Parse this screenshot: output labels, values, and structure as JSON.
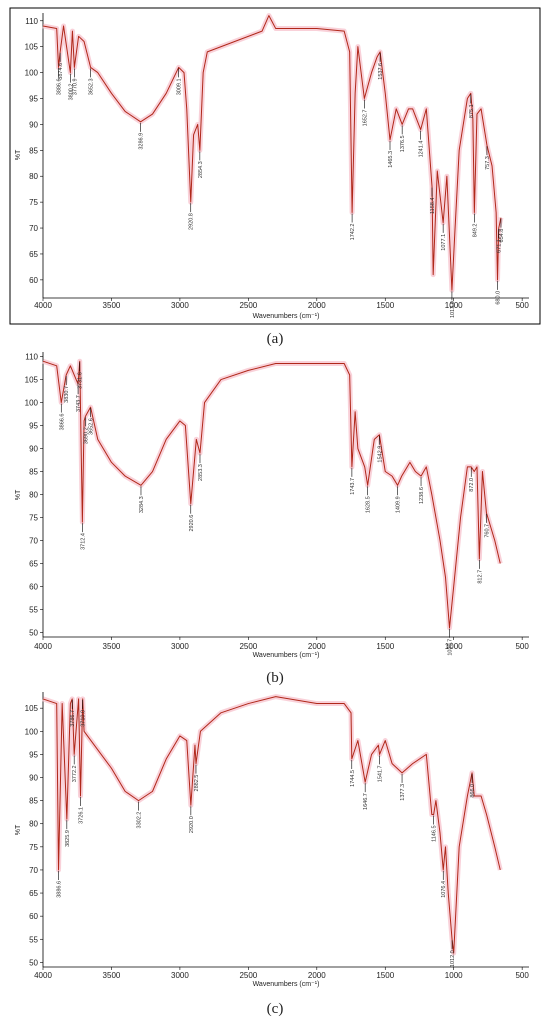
{
  "chart_data": [
    {
      "type": "line",
      "panel_label": "(a)",
      "x_label": "Wavenumbers (cm⁻¹)",
      "y_label": "%T",
      "xlim": [
        4000,
        450
      ],
      "xticks": [
        4000,
        3500,
        3000,
        2500,
        2000,
        1500,
        1000,
        500
      ],
      "ylim": [
        56.5,
        111.5
      ],
      "yticks": [
        60,
        65,
        70,
        75,
        80,
        85,
        90,
        95,
        100,
        105,
        110
      ],
      "frame": true,
      "series": [
        {
          "color": "#b0281a",
          "x": [
            4000,
            3900,
            3886.6,
            3874.6,
            3850,
            3800.2,
            3785,
            3770.9,
            3740,
            3700,
            3652.3,
            3600,
            3500,
            3400,
            3286.9,
            3200,
            3100,
            3009.1,
            2970,
            2950,
            2920.8,
            2900,
            2870,
            2854.3,
            2830,
            2800,
            2600,
            2400,
            2350,
            2300,
            2000,
            1800,
            1760,
            1742.2,
            1720,
            1700,
            1652.7,
            1600,
            1560,
            1537.6,
            1500,
            1465.3,
            1420,
            1376.5,
            1330,
            1300,
            1241.4,
            1200,
            1158.4,
            1150,
            1120,
            1077.1,
            1050,
            1013.0,
            990,
            960,
            900,
            875.1,
            860,
            849.2,
            830,
            800,
            757.3,
            720,
            690,
            680.0,
            671.1,
            654.8
          ],
          "values": [
            109,
            108.5,
            101,
            104,
            109,
            100,
            108,
            101,
            107,
            106,
            101,
            100,
            96,
            92.5,
            90.5,
            92,
            96,
            101,
            100,
            93,
            75,
            88,
            90,
            85,
            100,
            104,
            106,
            108,
            111,
            108.5,
            108.5,
            108,
            104,
            73,
            96,
            105,
            95,
            100,
            103,
            104,
            96,
            87,
            93,
            90,
            93,
            93,
            89,
            93,
            78,
            61,
            81,
            71,
            80,
            58,
            70,
            85,
            95,
            96,
            91,
            73,
            92,
            93,
            86,
            82,
            73,
            60,
            70,
            72
          ]
        }
      ],
      "annotations": [
        {
          "x": 3886.6,
          "label": "3886.6"
        },
        {
          "x": 3874.6,
          "label": "3874.6"
        },
        {
          "x": 3800.2,
          "label": "3800.2"
        },
        {
          "x": 3770.9,
          "label": "3770.9"
        },
        {
          "x": 3652.3,
          "label": "3652.3"
        },
        {
          "x": 3286.9,
          "label": "3286.9"
        },
        {
          "x": 3009.1,
          "label": "3009.1"
        },
        {
          "x": 2920.8,
          "label": "2920.8"
        },
        {
          "x": 2854.3,
          "label": "2854.3"
        },
        {
          "x": 1742.2,
          "label": "1742.2"
        },
        {
          "x": 1652.7,
          "label": "1652.7"
        },
        {
          "x": 1537.6,
          "label": "1537.6"
        },
        {
          "x": 1465.3,
          "label": "1465.3"
        },
        {
          "x": 1376.5,
          "label": "1376.5"
        },
        {
          "x": 1241.4,
          "label": "1241.4"
        },
        {
          "x": 1158.4,
          "label": "1158.4"
        },
        {
          "x": 1077.1,
          "label": "1077.1"
        },
        {
          "x": 1013.0,
          "label": "1013.0"
        },
        {
          "x": 875.1,
          "label": "875.1"
        },
        {
          "x": 849.2,
          "label": "849.2"
        },
        {
          "x": 757.3,
          "label": "757.3"
        },
        {
          "x": 680.0,
          "label": "680.0"
        },
        {
          "x": 671.1,
          "label": "671.1"
        },
        {
          "x": 654.8,
          "label": "654.8"
        }
      ]
    },
    {
      "type": "line",
      "panel_label": "(b)",
      "x_label": "Wavenumbers (cm⁻¹)",
      "y_label": "%T",
      "xlim": [
        4000,
        450
      ],
      "xticks": [
        4000,
        3500,
        3000,
        2500,
        2000,
        1500,
        1000,
        500
      ],
      "ylim": [
        49,
        111
      ],
      "yticks": [
        50,
        55,
        60,
        65,
        70,
        75,
        80,
        85,
        90,
        95,
        100,
        105,
        110
      ],
      "frame": false,
      "series": [
        {
          "color": "#b0281a",
          "x": [
            4000,
            3900,
            3866.6,
            3830.7,
            3800,
            3743.7,
            3731.6,
            3712.4,
            3700,
            3690.2,
            3652.6,
            3600,
            3500,
            3400,
            3284.3,
            3200,
            3100,
            3000,
            2960,
            2920.6,
            2880,
            2853.3,
            2820,
            2700,
            2500,
            2300,
            2000,
            1800,
            1760,
            1743.7,
            1720,
            1700,
            1650,
            1628.5,
            1580,
            1542.9,
            1500,
            1450,
            1409.9,
            1380,
            1320,
            1280,
            1238.6,
            1200,
            1160,
            1100,
            1060,
            1030.7,
            1000,
            950,
            900,
            872.0,
            850,
            830,
            812.7,
            790,
            760.7,
            700,
            660
          ],
          "values": [
            109,
            108,
            100,
            106,
            108,
            104,
            109,
            74,
            96,
            97,
            99,
            92,
            87,
            84,
            82,
            85,
            92,
            96,
            95,
            78,
            92,
            89,
            100,
            105,
            107,
            108.5,
            108.5,
            108.5,
            106,
            86,
            98,
            90,
            86,
            82,
            92,
            93,
            85,
            84,
            82,
            84,
            87,
            85,
            84,
            86,
            80,
            70,
            62,
            51,
            60,
            75,
            86,
            86,
            85,
            86,
            66,
            85,
            76,
            70,
            65
          ]
        }
      ],
      "annotations": [
        {
          "x": 3866.6,
          "label": "3866.6"
        },
        {
          "x": 3830.7,
          "label": "3830.7"
        },
        {
          "x": 3743.7,
          "label": "3743.7"
        },
        {
          "x": 3731.6,
          "label": "3731.6"
        },
        {
          "x": 3712.4,
          "label": "3712.4"
        },
        {
          "x": 3690.2,
          "label": "3690.2"
        },
        {
          "x": 3652.6,
          "label": "3652.6"
        },
        {
          "x": 3284.3,
          "label": "3284.3"
        },
        {
          "x": 2920.6,
          "label": "2920.6"
        },
        {
          "x": 2853.3,
          "label": "2853.3"
        },
        {
          "x": 1743.7,
          "label": "1743.7"
        },
        {
          "x": 1628.5,
          "label": "1628.5"
        },
        {
          "x": 1542.9,
          "label": "1542.9"
        },
        {
          "x": 1409.9,
          "label": "1409.9"
        },
        {
          "x": 1238.6,
          "label": "1238.6"
        },
        {
          "x": 1030.7,
          "label": "1030.7"
        },
        {
          "x": 872.0,
          "label": "872.0"
        },
        {
          "x": 812.7,
          "label": "812.7"
        },
        {
          "x": 760.7,
          "label": "760.7"
        }
      ]
    },
    {
      "type": "line",
      "panel_label": "(c)",
      "x_label": "Wavenumbers (cm⁻¹)",
      "y_label": "%T",
      "xlim": [
        4000,
        450
      ],
      "xticks": [
        4000,
        3500,
        3000,
        2500,
        2000,
        1500,
        1000,
        500
      ],
      "ylim": [
        49,
        108.5
      ],
      "yticks": [
        50,
        55,
        60,
        65,
        70,
        75,
        80,
        85,
        90,
        95,
        100,
        105
      ],
      "frame": false,
      "series": [
        {
          "color": "#b0281a",
          "x": [
            4000,
            3900,
            3886.6,
            3860,
            3825.9,
            3800,
            3786.7,
            3772.2,
            3740,
            3726.1,
            3710.0,
            3700,
            3600,
            3500,
            3400,
            3302.2,
            3200,
            3100,
            3000,
            2950,
            2920.0,
            2890,
            2882.5,
            2850,
            2700,
            2500,
            2300,
            2000,
            1800,
            1750,
            1744.5,
            1700,
            1646.7,
            1600,
            1550,
            1541.7,
            1500,
            1450,
            1377.3,
            1300,
            1200,
            1160,
            1146.5,
            1130,
            1100,
            1076.4,
            1060,
            1040,
            1012.0,
            1000,
            960,
            900,
            866.0,
            850,
            800,
            760,
            700,
            660
          ],
          "values": [
            107,
            106,
            70,
            106,
            81,
            106,
            107,
            95,
            107,
            86,
            107,
            100,
            96,
            92,
            87,
            85,
            87,
            94,
            99,
            98,
            84,
            97,
            93,
            100,
            104,
            106,
            107.5,
            106,
            106,
            104,
            94,
            98,
            89,
            95,
            97,
            95,
            98,
            93,
            91,
            93,
            95,
            82,
            82,
            85,
            78,
            70,
            75,
            65,
            55,
            52,
            75,
            86,
            91,
            86,
            86,
            82,
            75,
            70
          ]
        }
      ],
      "annotations": [
        {
          "x": 3886.6,
          "label": "3886.6"
        },
        {
          "x": 3825.9,
          "label": "3825.9"
        },
        {
          "x": 3786.7,
          "label": "3786.7"
        },
        {
          "x": 3772.2,
          "label": "3772.2"
        },
        {
          "x": 3726.1,
          "label": "3726.1"
        },
        {
          "x": 3710.0,
          "label": "3710.0"
        },
        {
          "x": 3302.2,
          "label": "3302.2"
        },
        {
          "x": 2920.0,
          "label": "2920.0"
        },
        {
          "x": 2882.5,
          "label": "2882.5"
        },
        {
          "x": 1744.5,
          "label": "1744.5"
        },
        {
          "x": 1646.7,
          "label": "1646.7"
        },
        {
          "x": 1541.7,
          "label": "1541.7"
        },
        {
          "x": 1377.3,
          "label": "1377.3"
        },
        {
          "x": 1146.5,
          "label": "1146.5"
        },
        {
          "x": 1076.4,
          "label": "1076.4"
        },
        {
          "x": 1012.0,
          "label": "1012.0"
        },
        {
          "x": 866.0,
          "label": "866.0"
        }
      ]
    }
  ]
}
